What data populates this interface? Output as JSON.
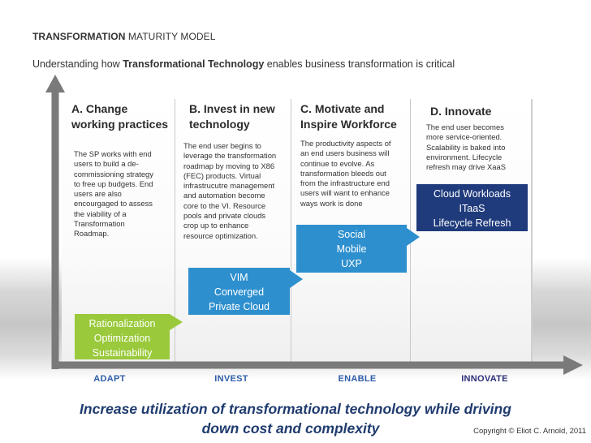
{
  "header": {
    "title_bold": "TRANSFORMATION",
    "title_rest": " MATURITY MODEL",
    "subtitle_pre": "Understanding how ",
    "subtitle_bold": "Transformational Technology",
    "subtitle_post": " enables business transformation is critical"
  },
  "columns": [
    {
      "heading": "A. Change\nworking practices",
      "description": "The SP works with end\nusers to build a de-\ncommissioning strategy\nto free up budgets.  End\nusers are also\nencourgaged to assess\nthe viability of a\nTransformation\nRoadmap."
    },
    {
      "heading": "B. Invest in new\ntechnology",
      "description": "The end user begins to\nleverage the transformation\nroadmap by moving to X86\n(FEC) products. Virtual\ninfrastrucutre management\nand automation become\ncore to the VI.  Resource\npools and private clouds\ncrop up to enhance\nresource optimization."
    },
    {
      "heading": "C. Motivate and\nInspire Workforce",
      "description": "The productivity aspects of\nan end users business will\ncontinue to evolve.  As\ntransformation bleeds out\nfrom the infrastructure end\nusers will want to enhance\nways work is done"
    },
    {
      "heading": "D. Innovate",
      "description": "The end user becomes\nmore service-oriented.\nScalability is baked into\nenvironment.  Lifecycle\nrefresh may drive XaaS"
    }
  ],
  "steps": [
    {
      "label": "Rationalization\nOptimization\nSustainability",
      "color": "#9ac93b"
    },
    {
      "label": "VIM\nConverged\nPrivate Cloud",
      "color": "#2e8fce"
    },
    {
      "label": "Social\nMobile\nUXP",
      "color": "#2e8fce"
    },
    {
      "label": "Cloud Workloads\nITaaS\nLifecycle Refresh",
      "color": "#1f3b7c"
    }
  ],
  "axis": {
    "labels": [
      "ADAPT",
      "INVEST",
      "ENABLE",
      "INNOVATE"
    ],
    "color": "#7a7a7a"
  },
  "footer": {
    "tagline_line1": "Increase utilization of transformational technology while driving",
    "tagline_line2": "down cost and complexity",
    "copyright": "Copyright © Eliot C. Arnold, 2011"
  }
}
